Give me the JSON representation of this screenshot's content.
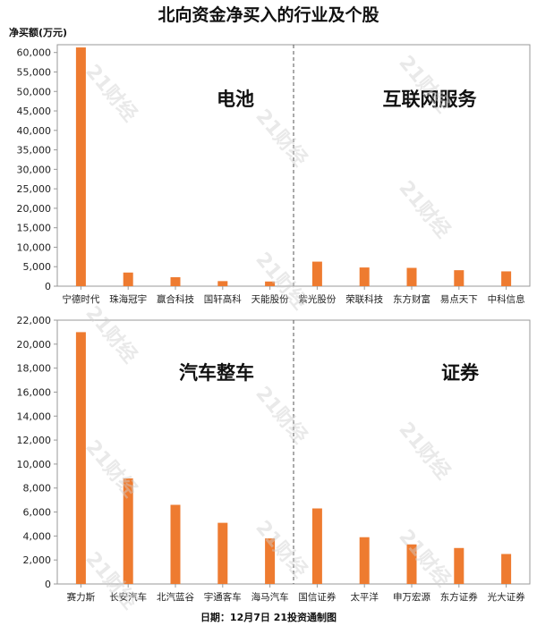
{
  "title": "北向资金净买入的行业及个股",
  "y_unit_label": "净买额(万元)",
  "footer": "日期：12月7日 21投资通制图",
  "watermark": "21财经",
  "colors": {
    "bar": "#ee7b30",
    "axis": "#999999",
    "divider": "#555555"
  },
  "chart_data": [
    {
      "type": "bar",
      "ylim": [
        0,
        62000
      ],
      "yticks": [
        0,
        5000,
        10000,
        15000,
        20000,
        25000,
        30000,
        35000,
        40000,
        45000,
        50000,
        55000,
        60000
      ],
      "groups": [
        {
          "label": "电池",
          "categories": [
            "宁德时代",
            "珠海冠宇",
            "赢合科技",
            "国轩高科",
            "天能股份"
          ],
          "values": [
            61300,
            3500,
            2300,
            1300,
            1200
          ]
        },
        {
          "label": "互联网服务",
          "categories": [
            "紫光股份",
            "荣联科技",
            "东方财富",
            "易点天下",
            "中科信息"
          ],
          "values": [
            6300,
            4800,
            4700,
            4100,
            3800
          ]
        }
      ]
    },
    {
      "type": "bar",
      "ylim": [
        0,
        22000
      ],
      "yticks": [
        0,
        2000,
        4000,
        6000,
        8000,
        10000,
        12000,
        14000,
        16000,
        18000,
        20000,
        22000
      ],
      "groups": [
        {
          "label": "汽车整车",
          "categories": [
            "赛力斯",
            "长安汽车",
            "北汽蓝谷",
            "宇通客车",
            "海马汽车"
          ],
          "values": [
            21000,
            8800,
            6600,
            5100,
            3800
          ]
        },
        {
          "label": "证券",
          "categories": [
            "国信证券",
            "太平洋",
            "申万宏源",
            "东方证券",
            "光大证券"
          ],
          "values": [
            6300,
            3900,
            3300,
            3000,
            2500
          ]
        }
      ]
    }
  ]
}
